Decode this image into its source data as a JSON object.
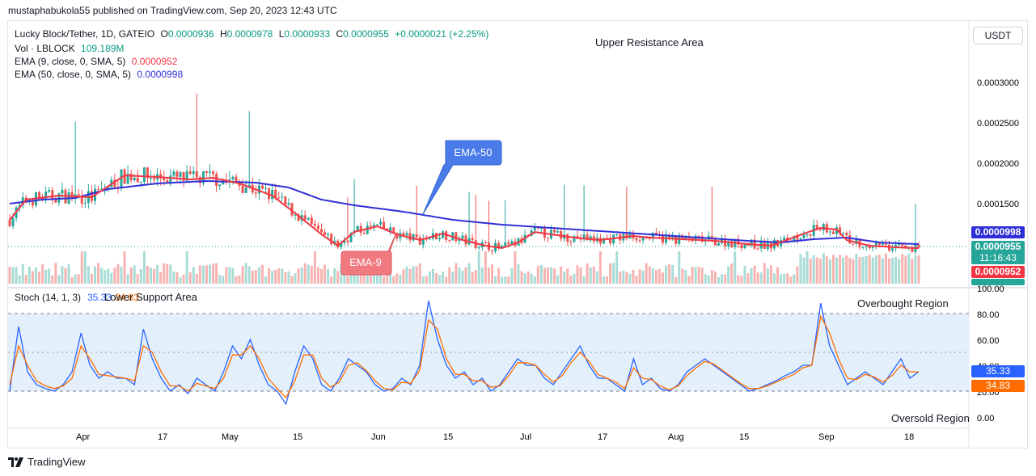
{
  "header": {
    "published_by": "mustaphabukola55 published on TradingView.com, Sep 20, 2023 12:43 UTC",
    "currency": "USDT"
  },
  "legend": {
    "symbol": "Lucky Block/Tether, 1D, GATEIO",
    "o_label": "O",
    "o_value": "0.0000936",
    "h_label": "H",
    "h_value": "0.0000978",
    "l_label": "L",
    "l_value": "0.0000933",
    "c_label": "C",
    "c_value": "0.0000955",
    "change": "+0.0000021 (+2.25%)",
    "vol_label": "Vol · LBLOCK",
    "vol_value": "109.189M",
    "ema9_label": "EMA (9, close, 0, SMA, 5)",
    "ema9_value": "0.0000952",
    "ema50_label": "EMA (50, close, 0, SMA, 5)",
    "ema50_value": "0.0000998",
    "stoch_label": "Stoch (14, 1, 3)",
    "stoch_k": "35.33",
    "stoch_d": "34.83"
  },
  "annotations": {
    "upper_resistance": "Upper Resistance Area",
    "lower_support": "Lower Support Area",
    "overbought": "Overbought Region",
    "oversold": "Oversold Region",
    "ema50_callout": "EMA-50",
    "ema9_callout": "EMA-9"
  },
  "price_axis": {
    "ticks": [
      "0.0003000",
      "0.0002500",
      "0.0002000",
      "0.0001500"
    ],
    "badges": {
      "ema50": "0.0000998",
      "last": "0.0000955",
      "countdown": "11:16:43",
      "ema9": "0.0000952"
    }
  },
  "stoch_axis": {
    "ticks": [
      "100.00",
      "80.00",
      "60.00",
      "40.00",
      "20.00",
      "0.00"
    ],
    "k_badge": "35.33",
    "d_badge": "34.83"
  },
  "time_axis": [
    "Apr",
    "17",
    "May",
    "15",
    "Jun",
    "15",
    "Jul",
    "17",
    "Aug",
    "15",
    "Sep",
    "18"
  ],
  "colors": {
    "up": "#26a69a",
    "down": "#ef5350",
    "ema9": "#f23645",
    "ema50": "#2f2fd8",
    "stoch_k": "#2962ff",
    "stoch_d": "#ff6d00",
    "stoch_band": "#e3f0fc"
  },
  "footer": {
    "brand": "TradingView"
  },
  "chart_data": [
    {
      "type": "candlestick",
      "title": "Lucky Block/Tether, 1D, GATEIO",
      "x_range": [
        "2023-03-13",
        "2023-09-20"
      ],
      "ylim": [
        4e-05,
        0.00033
      ],
      "series": [
        {
          "name": "EMA (9, close, 0, SMA, 5)",
          "points": [
            [
              0,
              0.00013
            ],
            [
              5,
              0.000155
            ],
            [
              15,
              0.00016
            ],
            [
              25,
              0.000158
            ],
            [
              35,
              0.000185
            ],
            [
              45,
              0.000183
            ],
            [
              55,
              0.00018
            ],
            [
              62,
              0.000182
            ],
            [
              70,
              0.000175
            ],
            [
              80,
              0.00016
            ],
            [
              88,
              0.000135
            ],
            [
              95,
              0.000112
            ],
            [
              100,
              9.8e-05
            ],
            [
              105,
              0.000115
            ],
            [
              112,
              0.000122
            ],
            [
              118,
              0.000112
            ],
            [
              125,
              0.000105
            ],
            [
              132,
              0.000113
            ],
            [
              138,
              0.000105
            ],
            [
              145,
              9.8e-05
            ],
            [
              150,
              9.5e-05
            ],
            [
              155,
              0.000102
            ],
            [
              160,
              0.000115
            ],
            [
              165,
              0.000112
            ],
            [
              172,
              0.000108
            ],
            [
              180,
              0.000105
            ],
            [
              190,
              0.00011
            ],
            [
              195,
              0.000108
            ],
            [
              205,
              0.000106
            ],
            [
              215,
              0.000104
            ],
            [
              225,
              0.0001
            ],
            [
              232,
              9.8e-05
            ],
            [
              240,
              0.00011
            ],
            [
              247,
              0.00012
            ],
            [
              252,
              0.000118
            ],
            [
              255,
              0.000105
            ],
            [
              262,
              9.8e-05
            ],
            [
              270,
              9.6e-05
            ],
            [
              276,
              9.5e-05
            ]
          ]
        },
        {
          "name": "EMA (50, close, 0, SMA, 5)",
          "points": [
            [
              0,
              0.00015
            ],
            [
              10,
              0.000155
            ],
            [
              20,
              0.000157
            ],
            [
              30,
              0.000168
            ],
            [
              45,
              0.000175
            ],
            [
              60,
              0.000178
            ],
            [
              75,
              0.000176
            ],
            [
              85,
              0.00017
            ],
            [
              95,
              0.000155
            ],
            [
              105,
              0.000148
            ],
            [
              120,
              0.00014
            ],
            [
              135,
              0.00013
            ],
            [
              150,
              0.000124
            ],
            [
              165,
              0.00012
            ],
            [
              180,
              0.000116
            ],
            [
              195,
              0.000112
            ],
            [
              210,
              0.000108
            ],
            [
              225,
              0.000104
            ],
            [
              235,
              0.000102
            ],
            [
              245,
              0.000106
            ],
            [
              255,
              0.000108
            ],
            [
              265,
              0.000102
            ],
            [
              276,
              0.0001
            ]
          ]
        }
      ],
      "candles_note": "Daily OHLC candles with volume histogram; last candle O 0.0000936 H 0.0000978 L 0.0000933 C 0.0000955"
    },
    {
      "type": "line",
      "title": "Stoch (14, 1, 3)",
      "ylim": [
        0,
        100
      ],
      "series": [
        {
          "name": "K",
          "values": [
            20,
            70,
            35,
            25,
            22,
            20,
            25,
            35,
            65,
            40,
            30,
            35,
            30,
            30,
            25,
            68,
            45,
            30,
            20,
            25,
            18,
            30,
            25,
            20,
            35,
            55,
            45,
            60,
            40,
            25,
            20,
            10,
            35,
            55,
            45,
            25,
            20,
            30,
            45,
            40,
            35,
            25,
            20,
            22,
            30,
            25,
            40,
            90,
            60,
            40,
            30,
            35,
            25,
            30,
            20,
            25,
            35,
            45,
            40,
            40,
            30,
            25,
            35,
            45,
            55,
            40,
            30,
            30,
            25,
            20,
            45,
            25,
            30,
            22,
            20,
            25,
            35,
            40,
            45,
            40,
            35,
            30,
            25,
            20,
            22,
            25,
            28,
            32,
            35,
            40,
            40,
            88,
            55,
            40,
            25,
            30,
            35,
            30,
            25,
            35,
            45,
            30,
            35
          ]
        },
        {
          "name": "D",
          "values": [
            25,
            55,
            40,
            28,
            24,
            22,
            24,
            30,
            55,
            45,
            33,
            32,
            31,
            30,
            28,
            55,
            50,
            35,
            24,
            24,
            20,
            26,
            24,
            22,
            30,
            48,
            48,
            55,
            45,
            30,
            22,
            15,
            28,
            48,
            48,
            30,
            23,
            27,
            40,
            42,
            36,
            28,
            22,
            21,
            27,
            26,
            36,
            75,
            68,
            45,
            33,
            33,
            28,
            28,
            23,
            24,
            32,
            42,
            42,
            40,
            33,
            27,
            32,
            42,
            50,
            43,
            33,
            30,
            27,
            22,
            38,
            30,
            29,
            24,
            21,
            24,
            32,
            38,
            43,
            41,
            36,
            31,
            26,
            22,
            22,
            24,
            27,
            30,
            33,
            38,
            40,
            78,
            65,
            45,
            30,
            29,
            33,
            31,
            27,
            32,
            40,
            35,
            35
          ]
        }
      ],
      "levels": {
        "overbought": 80,
        "oversold": 20
      }
    }
  ]
}
